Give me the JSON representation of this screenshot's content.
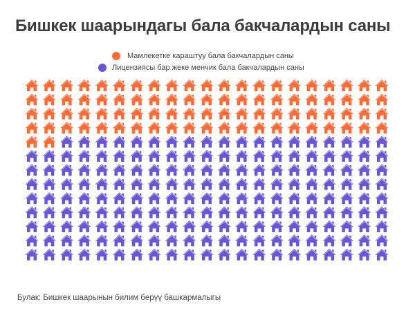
{
  "chart_data": {
    "type": "pictogram",
    "title": "Бишкек шаарындагы бала бакчалардын саны",
    "icon": "house-icon",
    "columns": 21,
    "rows": 13,
    "series": [
      {
        "name": "Мамлекетке караштуу бала бакчалардын саны",
        "value": 86,
        "color": "#ff6b35"
      },
      {
        "name": "Лицензиясы бар жеке менчик бала бакчалардын саны",
        "value": 187,
        "color": "#6a55d9"
      }
    ],
    "legend_position": "top-center",
    "source": "Булак: Бишкек шаарынын билим берүү башкармалыгы"
  }
}
